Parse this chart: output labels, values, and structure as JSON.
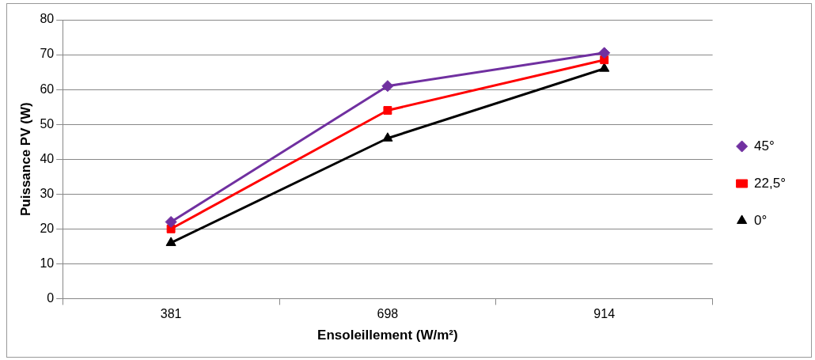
{
  "chart_data": {
    "type": "line",
    "xlabel": "Ensoleillement (W/m²)",
    "ylabel": "Puissance PV (W)",
    "categories": [
      "381",
      "698",
      "914"
    ],
    "ylim": [
      0,
      80
    ],
    "yticks": [
      0,
      10,
      20,
      30,
      40,
      50,
      60,
      70,
      80
    ],
    "grid": "y",
    "legend": "right",
    "line_style": "solid",
    "series": [
      {
        "name": "45°",
        "color": "#7030a0",
        "marker": "diamond",
        "values": [
          22,
          61,
          70.5
        ]
      },
      {
        "name": "22,5°",
        "color": "#ff0000",
        "marker": "square",
        "values": [
          20,
          54,
          68.5
        ]
      },
      {
        "name": "0°",
        "color": "#000000",
        "marker": "triangle",
        "values": [
          16,
          46,
          66
        ]
      }
    ]
  }
}
